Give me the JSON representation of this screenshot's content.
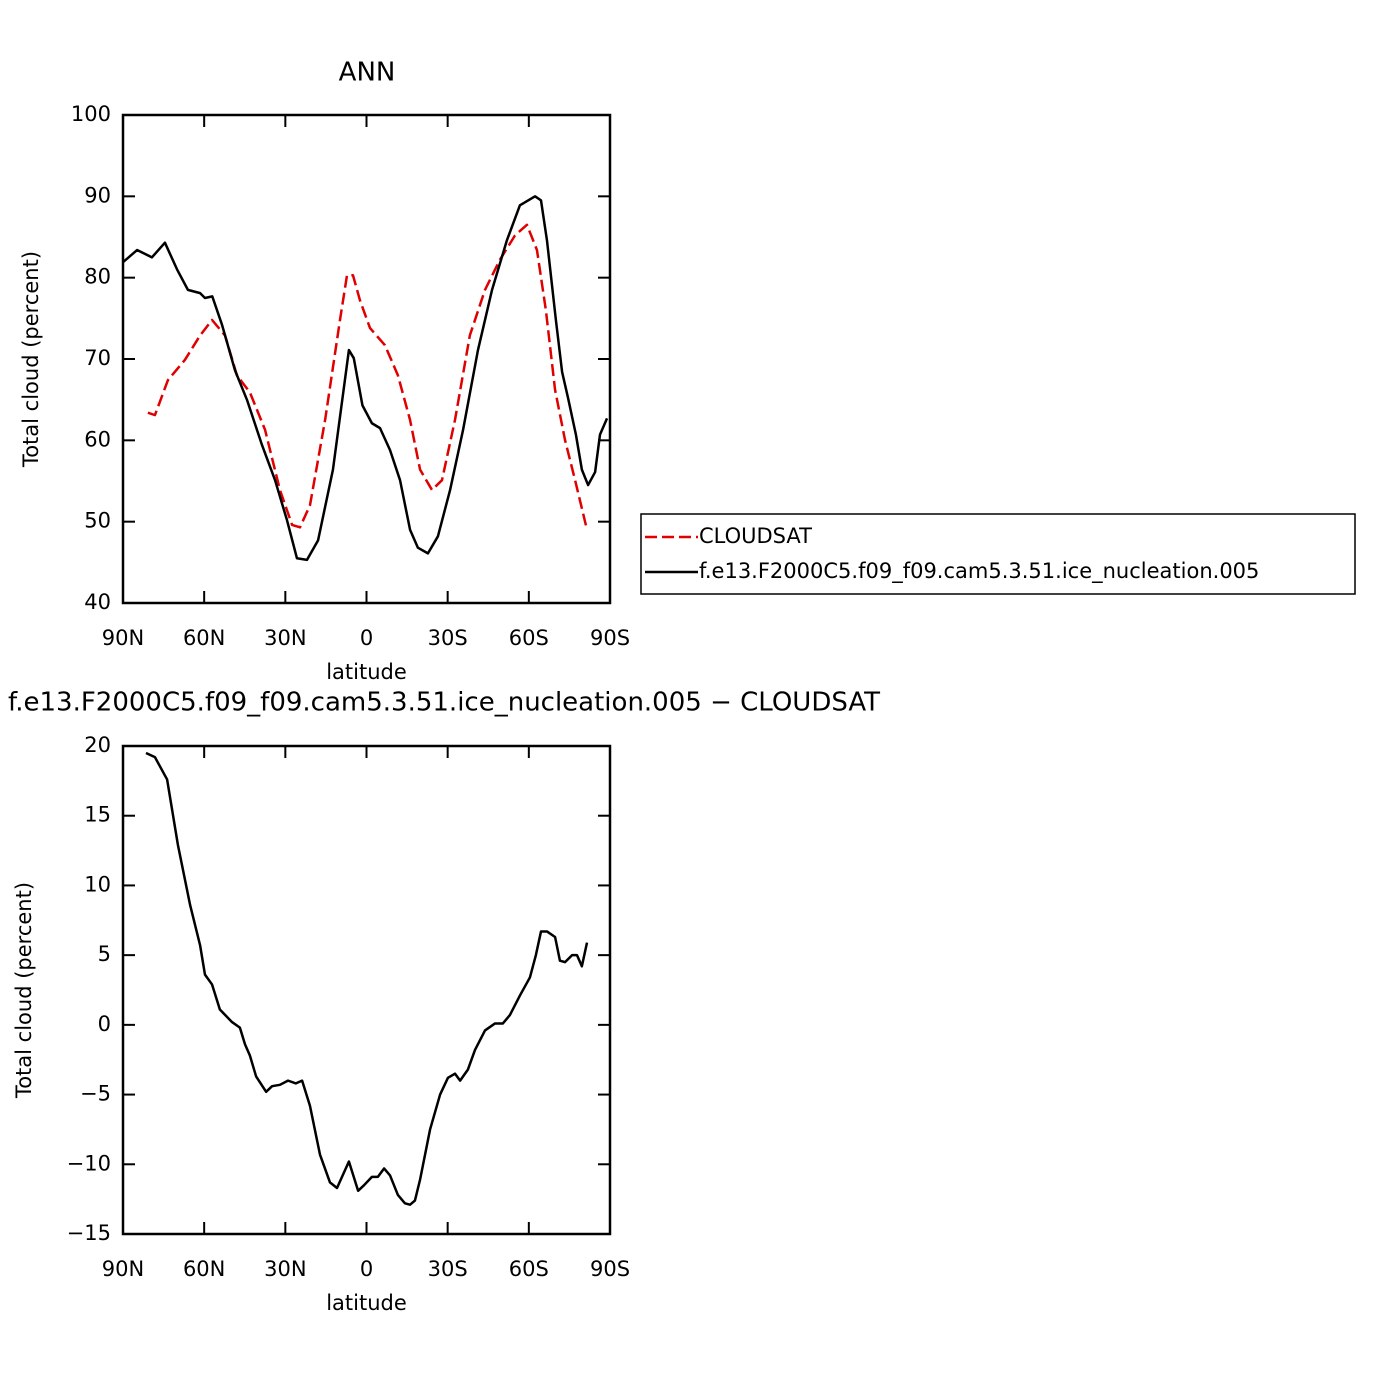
{
  "chart_data": [
    {
      "type": "line",
      "title": "ANN",
      "xlabel": "latitude",
      "ylabel": "Total cloud (percent)",
      "xlim": [
        90,
        -90
      ],
      "xticks": [
        {
          "value": 90,
          "label": "90N"
        },
        {
          "value": 60,
          "label": "60N"
        },
        {
          "value": 30,
          "label": "30N"
        },
        0,
        {
          "value": -30,
          "label": "30S"
        },
        {
          "value": -60,
          "label": "60S"
        },
        {
          "value": -90,
          "label": "90S"
        }
      ],
      "ylim": [
        40,
        100
      ],
      "yticks": [
        40,
        50,
        60,
        70,
        80,
        90,
        100
      ],
      "legend": "right",
      "series": [
        {
          "name": "CLOUDSAT",
          "color": "#e00000",
          "dashed": true,
          "x": [
            80.8,
            78.2,
            73.4,
            67.1,
            61.5,
            57.1,
            52.3,
            47.9,
            43.1,
            37.5,
            32,
            27.5,
            24.6,
            20.9,
            15.3,
            9.8,
            7.2,
            5,
            2.4,
            -1.3,
            -6.8,
            -11.6,
            -16.1,
            -19.8,
            -24.2,
            -27.9,
            -32.7,
            -38.2,
            -43.8,
            -49.3,
            -54.9,
            -59.3,
            -63,
            -66.3,
            -69.7,
            -73.4,
            -77.1,
            -81.5
          ],
          "values": [
            63.4,
            63.1,
            67.4,
            69.9,
            72.9,
            74.8,
            72.9,
            68,
            65.9,
            61.3,
            53.9,
            49.6,
            49.3,
            52,
            62.5,
            74.8,
            80.3,
            80.3,
            77.2,
            73.8,
            71.7,
            68,
            62.5,
            56.4,
            53.9,
            55.1,
            62.5,
            72.9,
            78.5,
            82.2,
            85.2,
            86.5,
            83.4,
            76,
            66.2,
            60,
            55.1,
            49
          ]
        },
        {
          "name": "f.e13.F2000C5.f09_f09.cam5.3.51.ice_nucleation.005",
          "color": "#000000",
          "dashed": false,
          "x": [
            90,
            84.8,
            79.3,
            74.5,
            70,
            66,
            61.5,
            59.7,
            57,
            53.4,
            48.6,
            44.2,
            38.6,
            33.8,
            29.4,
            25.7,
            22,
            17.9,
            12.4,
            6.5,
            4.7,
            1.5,
            -2,
            -5,
            -8.7,
            -12.4,
            -16.1,
            -19,
            -22.7,
            -26.4,
            -30.9,
            -35.7,
            -41.2,
            -46.4,
            -51.9,
            -56.7,
            -62.3,
            -64.5,
            -66.7,
            -70,
            -72.3,
            -74.5,
            -77.4,
            -79.6,
            -81.9,
            -84.5,
            -86.3,
            -88.9
          ],
          "values": [
            81.9,
            83.4,
            82.5,
            84.3,
            81,
            78.5,
            78.1,
            77.5,
            77.7,
            74.2,
            68.6,
            65,
            59.4,
            55.1,
            50.2,
            45.5,
            45.3,
            47.7,
            56.4,
            71.1,
            70.1,
            64.3,
            62.1,
            61.5,
            58.8,
            55.1,
            49,
            46.8,
            46.1,
            48.2,
            53.9,
            61.3,
            71.1,
            78.5,
            84.6,
            88.9,
            90,
            89.5,
            84.6,
            74.8,
            68.4,
            65.2,
            60.7,
            56.4,
            54.5,
            56.1,
            60.7,
            62.7
          ]
        }
      ]
    },
    {
      "type": "line",
      "title": "f.e13.F2000C5.f09_f09.cam5.3.51.ice_nucleation.005 − CLOUDSAT",
      "xlabel": "latitude",
      "ylabel": "Total cloud (percent)",
      "xlim": [
        90,
        -90
      ],
      "xticks": [
        {
          "value": 90,
          "label": "90N"
        },
        {
          "value": 60,
          "label": "60N"
        },
        {
          "value": 30,
          "label": "30N"
        },
        0,
        {
          "value": -30,
          "label": "30S"
        },
        {
          "value": -60,
          "label": "60S"
        },
        {
          "value": -90,
          "label": "90S"
        }
      ],
      "ylim": [
        -15,
        20
      ],
      "yticks": [
        {
          "value": -15,
          "label": "−15"
        },
        {
          "value": -10,
          "label": "−10"
        },
        {
          "value": -5,
          "label": "−5"
        },
        0,
        5,
        10,
        15,
        20
      ],
      "series": [
        {
          "color": "#000000",
          "dashed": false,
          "x": [
            81.5,
            78.2,
            73.7,
            69.7,
            65.2,
            61.5,
            59.7,
            57.1,
            54.2,
            49.7,
            46.8,
            44.9,
            43.1,
            40.8,
            37.1,
            34.9,
            32,
            29,
            26.1,
            23.8,
            20.9,
            17.2,
            13.5,
            10.9,
            6.5,
            3.1,
            0.9,
            -2,
            -4.2,
            -6.5,
            -8.7,
            -11.6,
            -14.2,
            -16.1,
            -17.9,
            -19.8,
            -23.5,
            -27.2,
            -30.1,
            -32.7,
            -34.6,
            -37.5,
            -40.1,
            -43.8,
            -47.5,
            -50.4,
            -53,
            -56.7,
            -60.4,
            -62.6,
            -64.5,
            -66.7,
            -69.7,
            -71.5,
            -73.4,
            -76,
            -77.8,
            -79.6,
            -81.5
          ],
          "values": [
            19.5,
            19.2,
            17.6,
            12.9,
            8.6,
            5.7,
            3.6,
            2.9,
            1.1,
            0.2,
            -0.2,
            -1.4,
            -2.2,
            -3.7,
            -4.8,
            -4.4,
            -4.3,
            -4,
            -4.2,
            -4,
            -5.8,
            -9.3,
            -11.3,
            -11.7,
            -9.8,
            -11.9,
            -11.5,
            -10.9,
            -10.9,
            -10.3,
            -10.8,
            -12.2,
            -12.8,
            -12.9,
            -12.6,
            -11.1,
            -7.5,
            -5,
            -3.8,
            -3.5,
            -4,
            -3.2,
            -1.8,
            -0.4,
            0.1,
            0.1,
            0.7,
            2.1,
            3.4,
            5,
            6.7,
            6.7,
            6.3,
            4.6,
            4.5,
            5,
            5,
            4.2,
            5.9
          ]
        }
      ]
    }
  ]
}
